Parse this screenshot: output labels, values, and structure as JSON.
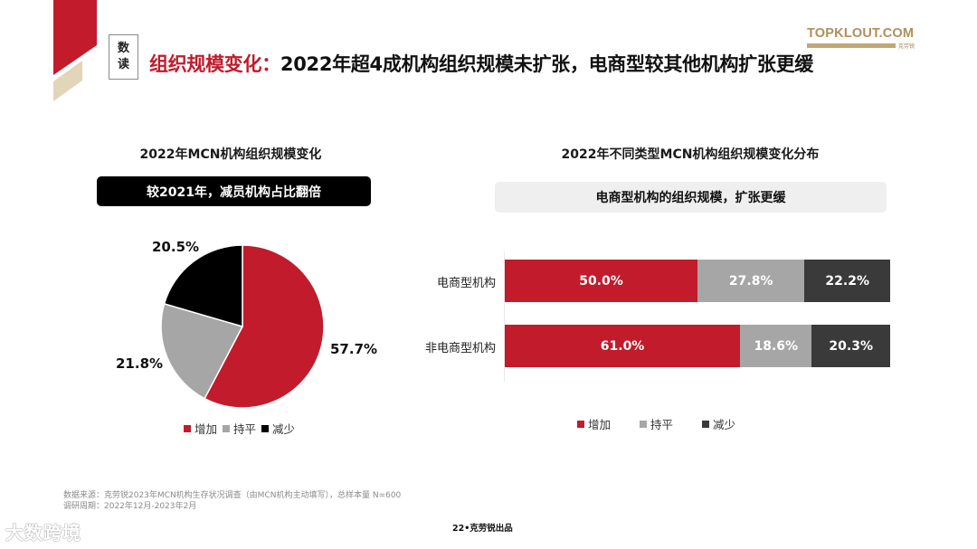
{
  "header": {
    "tag_line1": "数",
    "tag_line2": "读",
    "title_red": "组织规模变化：",
    "title_black": "2022年超4成机构组织规模未扩张，电商型较其他机构扩张更缓",
    "logo_brand": "TOPKLOUT.COM",
    "logo_sub": "克劳锐"
  },
  "colors": {
    "accent_red": "#c11b2c",
    "gray": "#a6a6a6",
    "black": "#000000",
    "dark_gray": "#3a3a3a",
    "tan": "#e2d5b8"
  },
  "left_panel": {
    "title": "2022年MCN机构组织规模变化",
    "callout": "较2021年，减员机构占比翻倍"
  },
  "right_panel": {
    "title": "2022年不同类型MCN机构组织规模变化分布",
    "callout": "电商型机构的组织规模，扩张更缓"
  },
  "chart_data": [
    {
      "type": "pie",
      "title": "2022年MCN机构组织规模变化",
      "categories": [
        "增加",
        "持平",
        "减少"
      ],
      "values": [
        57.7,
        21.8,
        20.5
      ],
      "labels": [
        "57.7%",
        "21.8%",
        "20.5%"
      ],
      "colors": [
        "#c11b2c",
        "#a6a6a6",
        "#000000"
      ],
      "legend": [
        "增加",
        "持平",
        "减少"
      ],
      "legend_position": "bottom"
    },
    {
      "type": "bar",
      "orientation": "horizontal",
      "stacked": true,
      "percent": true,
      "title": "2022年不同类型MCN机构组织规模变化分布",
      "categories": [
        "电商型机构",
        "非电商型机构"
      ],
      "series": [
        {
          "name": "增加",
          "values": [
            50.0,
            61.0
          ],
          "labels": [
            "50.0%",
            "61.0%"
          ],
          "color": "#c11b2c"
        },
        {
          "name": "持平",
          "values": [
            27.8,
            18.6
          ],
          "labels": [
            "27.8%",
            "18.6%"
          ],
          "color": "#a6a6a6"
        },
        {
          "name": "减少",
          "values": [
            22.2,
            20.3
          ],
          "labels": [
            "22.2%",
            "20.3%"
          ],
          "color": "#3a3a3a"
        }
      ],
      "legend": [
        "增加",
        "持平",
        "减少"
      ],
      "legend_position": "bottom",
      "grid": false
    }
  ],
  "footer": {
    "source": "数据来源：克劳锐2023年MCN机构生存状况调查（由MCN机构主动填写），总样本量 N=600",
    "period": "调研周期：2022年12月-2023年2月",
    "page": "22•克劳锐出品",
    "watermark": "大数跨境"
  }
}
